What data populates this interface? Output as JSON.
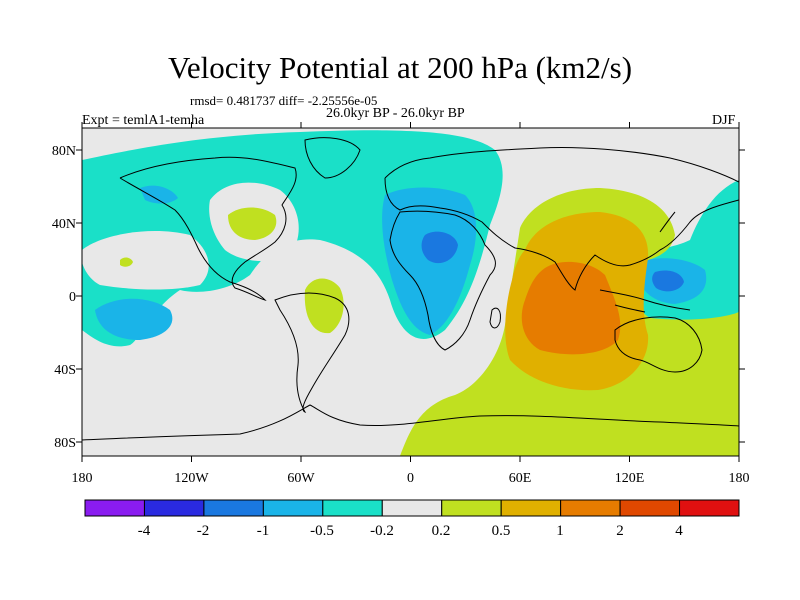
{
  "title": "Velocity Potential at 200 hPa (km2/s)",
  "stats": "rmsd= 0.481737 diff= -2.25556e-05",
  "experiment": "Expt = temlA1-temha",
  "period": "26.0kyr BP - 26.0kyr BP",
  "season": "DJF",
  "map": {
    "lon_ticks": [
      "180",
      "120W",
      "60W",
      "0",
      "60E",
      "120E",
      "180"
    ],
    "lat_ticks": [
      "80N",
      "40N",
      "0",
      "40S",
      "80S"
    ]
  },
  "colorbar": {
    "colors": [
      "#8a1cf0",
      "#2a2ae0",
      "#1a78e0",
      "#1ab4e8",
      "#1ae0c8",
      "#e8e8e8",
      "#c0e020",
      "#e0b000",
      "#e67c00",
      "#e04800",
      "#e01010"
    ],
    "labels": [
      "-4",
      "-2",
      "-1",
      "-0.5",
      "-0.2",
      "0.2",
      "0.5",
      "1",
      "2",
      "4"
    ]
  },
  "palette": {
    "neutral": "#e8e8e8",
    "neg_weak": "#1ae0c8",
    "neg_mid": "#1ab4e8",
    "neg_strong": "#1a78e0",
    "pos_weak": "#c0e020",
    "pos_mid": "#e0b000",
    "pos_strong": "#e67c00"
  }
}
